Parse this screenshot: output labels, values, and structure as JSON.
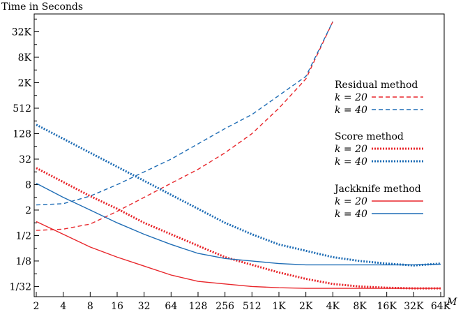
{
  "chart_data": {
    "type": "line",
    "title": "",
    "ylabel": "Time in Seconds",
    "xlabel": "M",
    "x_scale": "log2",
    "y_scale": "log2",
    "x": [
      1,
      2,
      3,
      4,
      5,
      6,
      7,
      8,
      9,
      10,
      11,
      12,
      13,
      14,
      15,
      16
    ],
    "categories": [
      "2",
      "4",
      "8",
      "16",
      "32",
      "64",
      "128",
      "256",
      "512",
      "1K",
      "2K",
      "4K",
      "8K",
      "16K",
      "32K",
      "64K"
    ],
    "y_ticks": [
      {
        "label": "1/32",
        "log2": -5
      },
      {
        "label": "1/8",
        "log2": -3
      },
      {
        "label": "1/2",
        "log2": -1
      },
      {
        "label": "2",
        "log2": 1
      },
      {
        "label": "8",
        "log2": 3
      },
      {
        "label": "32",
        "log2": 5
      },
      {
        "label": "128",
        "log2": 7
      },
      {
        "label": "512",
        "log2": 9
      },
      {
        "label": "2K",
        "log2": 11
      },
      {
        "label": "8K",
        "log2": 13
      },
      {
        "label": "32K",
        "log2": 15
      }
    ],
    "ylim_log2": [
      -5.8,
      16.4
    ],
    "legend": [
      {
        "heading": "Residual method",
        "entries": [
          "k = 20",
          "k = 40"
        ]
      },
      {
        "heading": "Score method",
        "entries": [
          "k = 20",
          "k = 40"
        ]
      },
      {
        "heading": "Jackknife method",
        "entries": [
          "k = 20",
          "k = 40"
        ]
      }
    ],
    "series": [
      {
        "name": "Residual method k = 20",
        "color": "#e8262b",
        "style": "dashed",
        "log2_values": [
          -0.6,
          -0.5,
          -0.1,
          0.9,
          2.0,
          3.1,
          4.2,
          5.5,
          7.0,
          9.0,
          11.3,
          15.8,
          null,
          null,
          null,
          null
        ]
      },
      {
        "name": "Residual method k = 40",
        "color": "#1f6db5",
        "style": "dashed",
        "log2_values": [
          1.4,
          1.5,
          2.1,
          3.0,
          4.0,
          5.0,
          6.2,
          7.4,
          8.5,
          10.0,
          11.5,
          15.8,
          null,
          null,
          null,
          null
        ]
      },
      {
        "name": "Score method k = 20",
        "color": "#e8262b",
        "style": "dotted",
        "log2_values": [
          4.3,
          3.2,
          2.1,
          1.1,
          0.0,
          -0.9,
          -1.8,
          -2.7,
          -3.3,
          -3.9,
          -4.4,
          -4.8,
          -5.0,
          -5.1,
          -5.15,
          -5.15
        ]
      },
      {
        "name": "Score method k = 40",
        "color": "#1f6db5",
        "style": "dotted",
        "log2_values": [
          7.7,
          6.6,
          5.5,
          4.4,
          3.3,
          2.2,
          1.1,
          0.0,
          -0.9,
          -1.7,
          -2.2,
          -2.7,
          -3.0,
          -3.2,
          -3.35,
          -3.2
        ]
      },
      {
        "name": "Jackknife method k = 20",
        "color": "#e8262b",
        "style": "solid",
        "log2_values": [
          0.1,
          -0.9,
          -1.9,
          -2.7,
          -3.4,
          -4.1,
          -4.6,
          -4.8,
          -5.0,
          -5.1,
          -5.15,
          -5.15,
          -5.15,
          -5.15,
          -5.15,
          -5.15
        ]
      },
      {
        "name": "Jackknife method k = 40",
        "color": "#1f6db5",
        "style": "solid",
        "log2_values": [
          3.1,
          2.0,
          1.0,
          0.0,
          -0.9,
          -1.7,
          -2.4,
          -2.8,
          -3.0,
          -3.2,
          -3.3,
          -3.3,
          -3.3,
          -3.3,
          -3.3,
          -3.25
        ]
      }
    ]
  }
}
